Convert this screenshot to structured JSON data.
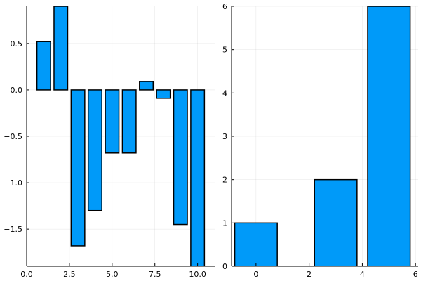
{
  "chart_data": [
    {
      "type": "bar",
      "x": [
        1,
        2,
        3,
        4,
        5,
        6,
        7,
        8,
        9,
        10
      ],
      "values": [
        0.52,
        0.9,
        -1.68,
        -1.3,
        -0.68,
        -0.68,
        0.09,
        -0.09,
        -1.45,
        -1.9
      ],
      "bar_width": 0.8,
      "xlim": [
        0,
        11
      ],
      "ylim": [
        -1.9,
        0.9
      ],
      "xticks": [
        0.0,
        2.5,
        5.0,
        7.5,
        10.0
      ],
      "xtick_labels": [
        "0.0",
        "2.5",
        "5.0",
        "7.5",
        "10.0"
      ],
      "yticks": [
        -1.5,
        -1.0,
        -0.5,
        0.0,
        0.5
      ],
      "ytick_labels": [
        "−1.5",
        "−1.0",
        "−0.5",
        "0.0",
        "0.5"
      ],
      "grid": true,
      "legend": "none",
      "color": "#009AF9"
    },
    {
      "type": "bar",
      "x": [
        0,
        3,
        5
      ],
      "values": [
        1,
        2,
        6
      ],
      "bar_width": 1.6,
      "xlim": [
        -0.92,
        6.1
      ],
      "ylim": [
        0,
        6
      ],
      "xticks": [
        0,
        2,
        4,
        6
      ],
      "xtick_labels": [
        "0",
        "2",
        "4",
        "6"
      ],
      "yticks": [
        0,
        1,
        2,
        3,
        4,
        5,
        6
      ],
      "ytick_labels": [
        "0",
        "1",
        "2",
        "3",
        "4",
        "5",
        "6"
      ],
      "grid": true,
      "legend": "none",
      "color": "#009AF9"
    }
  ]
}
